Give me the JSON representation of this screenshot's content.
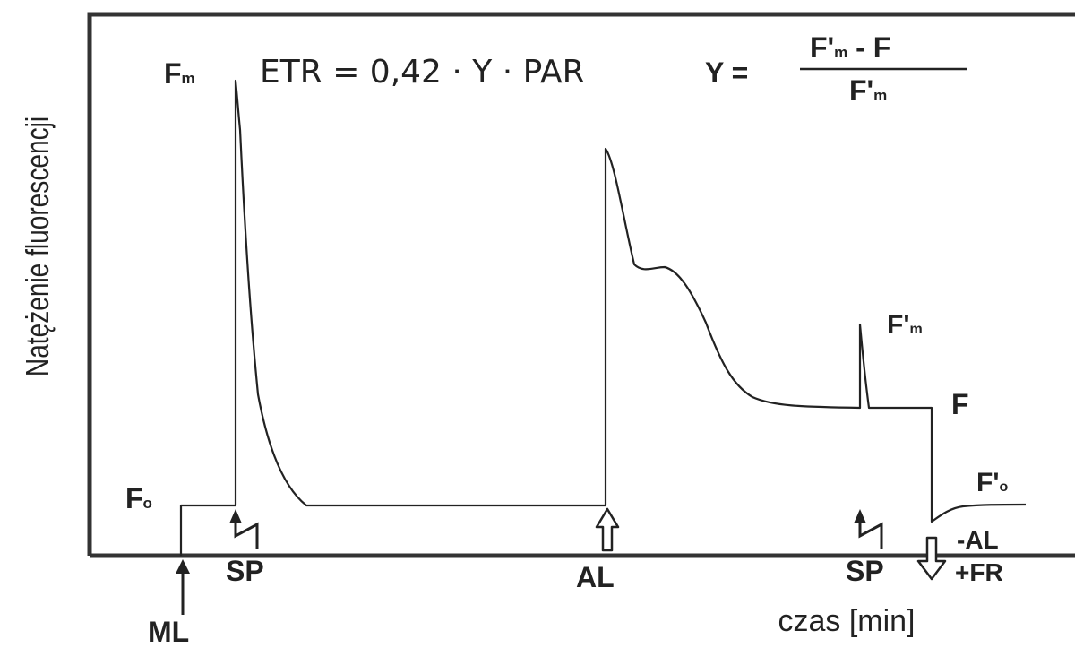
{
  "axes": {
    "y_label": "Natężenie fluorescencji",
    "x_label": "czas [min]"
  },
  "equations": {
    "etr": "ETR = 0,42 · Y · PAR",
    "y_lhs": "Y =",
    "frac_num_base": "F'",
    "frac_num_sub": "m",
    "frac_num_rest": " - F",
    "frac_den_base": "F'",
    "frac_den_sub": "m"
  },
  "levels": {
    "fo_base": "F",
    "fo_sub": "o",
    "fm_base": "F",
    "fm_sub": "m",
    "fpm_base": "F'",
    "fpm_sub": "m",
    "f": "F",
    "fpo_base": "F'",
    "fpo_sub": "o"
  },
  "events": {
    "ml": "ML",
    "sp1": "SP",
    "al": "AL",
    "sp2": "SP",
    "minus_al": "-AL",
    "plus_fr": "+FR"
  },
  "colors": {
    "line": "#222222",
    "frame": "#333333",
    "background": "#ffffff"
  }
}
